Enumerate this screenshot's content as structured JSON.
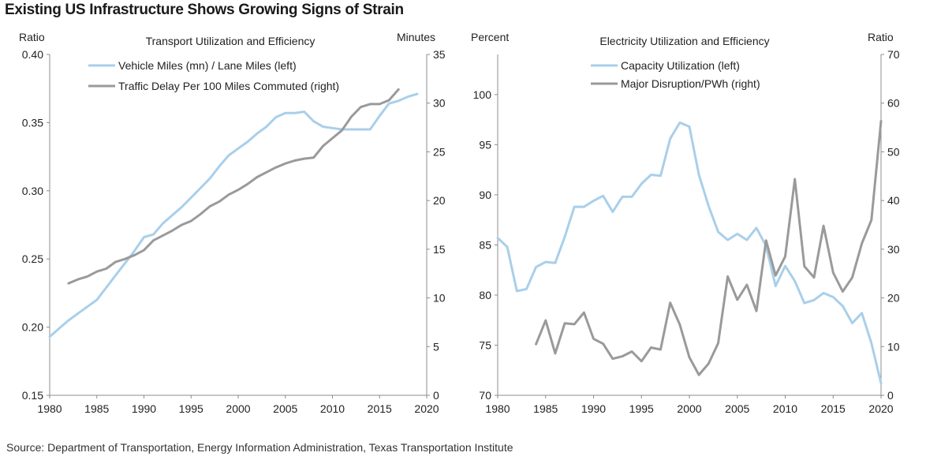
{
  "page": {
    "title": "Existing US Infrastructure Shows Growing Signs of Strain",
    "source": "Source: Department of Transportation, Energy Information Administration, Texas Transportation Institute"
  },
  "colors": {
    "series_blue": "#a9cfea",
    "series_gray": "#9a9a9a",
    "axis": "#8c8c8c"
  },
  "chart_data": [
    {
      "type": "line",
      "title": "Transport  Utilization and Efficiency",
      "ylabel_left": "Ratio",
      "ylabel_right": "Minutes",
      "xlim": [
        1980,
        2020
      ],
      "ylim_left": [
        0.15,
        0.4
      ],
      "ylim_right": [
        0,
        35
      ],
      "x_ticks": [
        "1980",
        "1985",
        "1990",
        "1995",
        "2000",
        "2005",
        "2010",
        "2015",
        "2020"
      ],
      "y_ticks_left": [
        "0.15",
        "0.20",
        "0.25",
        "0.30",
        "0.35",
        "0.40"
      ],
      "y_ticks_right": [
        "0",
        "5",
        "10",
        "15",
        "20",
        "25",
        "30",
        "35"
      ],
      "legend_position": "top-left",
      "series": [
        {
          "name": "Vehicle Miles (mn) / Lane Miles (left)",
          "axis": "left",
          "x": [
            1980,
            1981,
            1982,
            1983,
            1984,
            1985,
            1986,
            1987,
            1988,
            1989,
            1990,
            1991,
            1992,
            1993,
            1994,
            1995,
            1996,
            1997,
            1998,
            1999,
            2000,
            2001,
            2002,
            2003,
            2004,
            2005,
            2006,
            2007,
            2008,
            2009,
            2010,
            2011,
            2012,
            2013,
            2014,
            2015,
            2016,
            2017,
            2018,
            2019
          ],
          "values": [
            0.193,
            0.199,
            0.205,
            0.21,
            0.215,
            0.22,
            0.229,
            0.238,
            0.247,
            0.256,
            0.266,
            0.268,
            0.276,
            0.282,
            0.288,
            0.295,
            0.302,
            0.309,
            0.318,
            0.326,
            0.331,
            0.336,
            0.342,
            0.347,
            0.354,
            0.357,
            0.357,
            0.358,
            0.351,
            0.347,
            0.346,
            0.345,
            0.345,
            0.345,
            0.345,
            0.355,
            0.364,
            0.366,
            0.369,
            0.371
          ]
        },
        {
          "name": "Traffic Delay Per 100 Miles Commuted (right)",
          "axis": "right",
          "x": [
            1982,
            1983,
            1984,
            1985,
            1986,
            1987,
            1988,
            1989,
            1990,
            1991,
            1992,
            1993,
            1994,
            1995,
            1996,
            1997,
            1998,
            1999,
            2000,
            2001,
            2002,
            2003,
            2004,
            2005,
            2006,
            2007,
            2008,
            2009,
            2010,
            2011,
            2012,
            2013,
            2014,
            2015,
            2016,
            2017
          ],
          "values": [
            11.5,
            11.9,
            12.2,
            12.7,
            13.0,
            13.7,
            14.0,
            14.4,
            14.9,
            15.9,
            16.4,
            16.9,
            17.5,
            17.9,
            18.6,
            19.4,
            19.9,
            20.6,
            21.1,
            21.7,
            22.4,
            22.9,
            23.4,
            23.8,
            24.1,
            24.3,
            24.4,
            25.6,
            26.4,
            27.2,
            28.6,
            29.6,
            29.9,
            29.9,
            30.3,
            31.4
          ]
        }
      ]
    },
    {
      "type": "line",
      "title": "Electricity Utilization and Efficiency",
      "ylabel_left": "Percent",
      "ylabel_right": "Ratio",
      "xlim": [
        1980,
        2020
      ],
      "ylim_left": [
        70,
        104
      ],
      "ylim_right": [
        0,
        70
      ],
      "x_ticks": [
        "1980",
        "1985",
        "1990",
        "1995",
        "2000",
        "2005",
        "2010",
        "2015",
        "2020"
      ],
      "y_ticks_left": [
        "70",
        "75",
        "80",
        "85",
        "90",
        "95",
        "100"
      ],
      "y_ticks_right": [
        "0",
        "10",
        "20",
        "30",
        "40",
        "50",
        "60",
        "70"
      ],
      "legend_position": "top-left",
      "series": [
        {
          "name": "Capacity Utilization (left)",
          "axis": "left",
          "x": [
            1980,
            1981,
            1982,
            1983,
            1984,
            1985,
            1986,
            1987,
            1988,
            1989,
            1990,
            1991,
            1992,
            1993,
            1994,
            1995,
            1996,
            1997,
            1998,
            1999,
            2000,
            2001,
            2002,
            2003,
            2004,
            2005,
            2006,
            2007,
            2008,
            2009,
            2010,
            2011,
            2012,
            2013,
            2014,
            2015,
            2016,
            2017,
            2018,
            2019,
            2020
          ],
          "values": [
            85.7,
            84.8,
            80.4,
            80.6,
            82.8,
            83.3,
            83.2,
            85.8,
            88.8,
            88.8,
            89.4,
            89.9,
            88.3,
            89.8,
            89.8,
            91.1,
            92.0,
            91.9,
            95.6,
            97.2,
            96.8,
            92.0,
            88.9,
            86.3,
            85.5,
            86.1,
            85.5,
            86.7,
            84.9,
            80.9,
            82.9,
            81.4,
            79.2,
            79.5,
            80.2,
            79.8,
            78.9,
            77.2,
            78.2,
            75.2,
            71.2
          ]
        },
        {
          "name": "Major Disruption/PWh (right)",
          "axis": "right",
          "x": [
            1984,
            1985,
            1986,
            1987,
            1988,
            1989,
            1990,
            1991,
            1992,
            1993,
            1994,
            1995,
            1996,
            1997,
            1998,
            1999,
            2000,
            2001,
            2002,
            2003,
            2004,
            2005,
            2006,
            2007,
            2008,
            2009,
            2010,
            2011,
            2012,
            2013,
            2014,
            2015,
            2016,
            2017,
            2018,
            2019,
            2020
          ],
          "values": [
            10.5,
            15.4,
            8.6,
            14.8,
            14.6,
            17.0,
            11.6,
            10.6,
            7.5,
            8.0,
            9.0,
            7.0,
            9.8,
            9.4,
            19.0,
            14.5,
            7.8,
            4.2,
            6.5,
            10.7,
            24.4,
            19.6,
            22.7,
            17.3,
            31.8,
            24.6,
            28.5,
            44.4,
            26.5,
            24.2,
            34.8,
            25.2,
            21.3,
            24.2,
            31.2,
            36.0,
            56.3
          ]
        }
      ]
    }
  ]
}
